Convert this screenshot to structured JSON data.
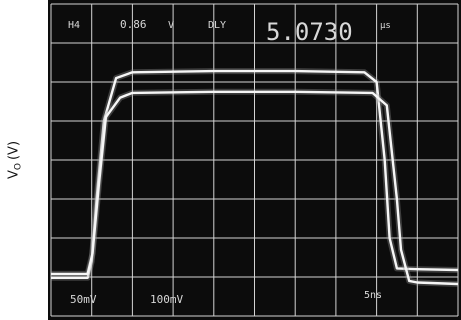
{
  "chart_data": {
    "type": "line",
    "ylabel_base": "V",
    "ylabel_sub": "O",
    "ylabel_unit": "(V)",
    "grid": true,
    "grid_divisions": {
      "x": 10,
      "y": 8
    },
    "x_unit_per_div": "5ns",
    "x_range_div": [
      0,
      10
    ],
    "y_range_div": [
      -4,
      4
    ],
    "readouts": {
      "channel": "H4",
      "level": "0.86",
      "level_unit": "V",
      "mode": "DLY",
      "delay": "5.0730",
      "delay_unit": "μs",
      "ch1_scale": "50mV",
      "ch2_scale": "100mV",
      "time_scale": "5ns"
    },
    "series": [
      {
        "x": [
          0,
          0.9,
          1.0,
          1.12,
          1.3,
          1.6,
          2.0,
          4.0,
          6.0,
          7.7,
          8.0,
          8.2,
          8.32,
          8.5,
          9.0,
          10
        ],
        "y": [
          -3.02,
          -3.02,
          -2.6,
          -1.0,
          1.0,
          2.1,
          2.25,
          2.28,
          2.28,
          2.25,
          2.0,
          0.0,
          -2.0,
          -2.78,
          -2.8,
          -2.82
        ]
      },
      {
        "x": [
          0,
          0.9,
          1.02,
          1.18,
          1.35,
          1.7,
          2.0,
          4.0,
          6.0,
          7.9,
          8.25,
          8.5,
          8.6,
          8.8,
          9.0,
          10
        ],
        "y": [
          -2.92,
          -2.92,
          -2.4,
          -0.6,
          1.1,
          1.6,
          1.72,
          1.75,
          1.75,
          1.72,
          1.4,
          -1.0,
          -2.3,
          -3.1,
          -3.14,
          -3.18
        ]
      }
    ]
  }
}
